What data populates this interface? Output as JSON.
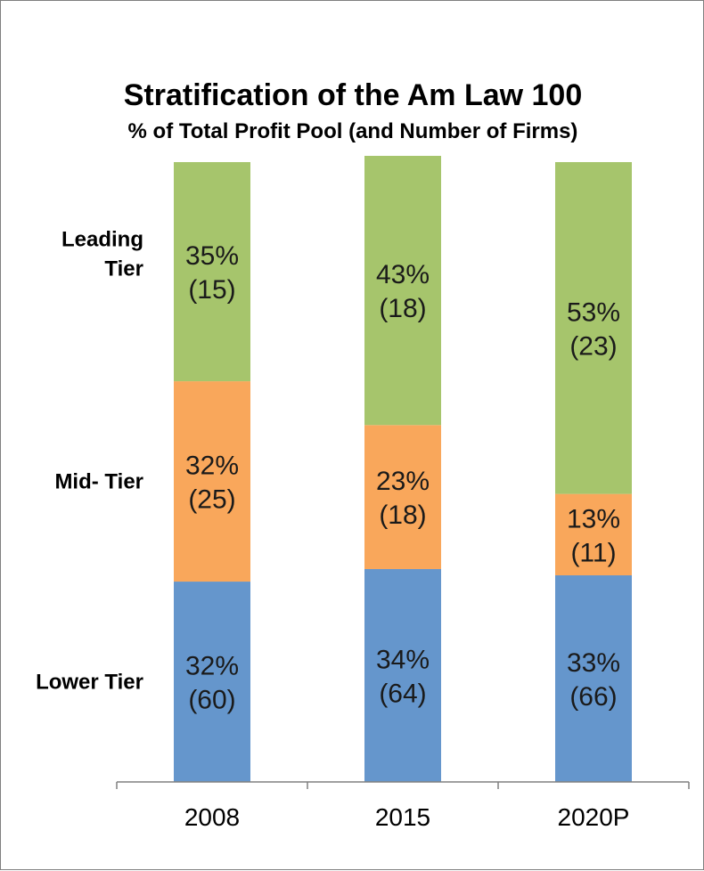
{
  "chart_data": {
    "type": "bar",
    "stacked": true,
    "title": "Stratification of the Am Law 100",
    "subtitle": "% of Total Profit Pool (and Number of Firms)",
    "categories": [
      "2008",
      "2015",
      "2020P"
    ],
    "series": [
      {
        "name": "Lower Tier",
        "color": "#6596CC",
        "values": [
          32,
          34,
          33
        ],
        "firms": [
          60,
          64,
          66
        ],
        "pct_labels": [
          "32%",
          "34%",
          "33%"
        ],
        "firm_labels": [
          "(60)",
          "(64)",
          "(66)"
        ]
      },
      {
        "name": "Mid- Tier",
        "color": "#F9A75B",
        "values": [
          32,
          23,
          13
        ],
        "firms": [
          25,
          18,
          11
        ],
        "pct_labels": [
          "32%",
          "23%",
          "13%"
        ],
        "firm_labels": [
          "(25)",
          "(18)",
          "(11)"
        ]
      },
      {
        "name": "Leading Tier",
        "name_lines": [
          "Leading",
          "Tier"
        ],
        "color": "#A6C56C",
        "values": [
          35,
          43,
          53
        ],
        "firms": [
          15,
          18,
          23
        ],
        "pct_labels": [
          "35%",
          "43%",
          "53%"
        ],
        "firm_labels": [
          "(15)",
          "(18)",
          "(23)"
        ]
      }
    ],
    "ylim": [
      0,
      100
    ],
    "grid": false,
    "legend": "left"
  }
}
